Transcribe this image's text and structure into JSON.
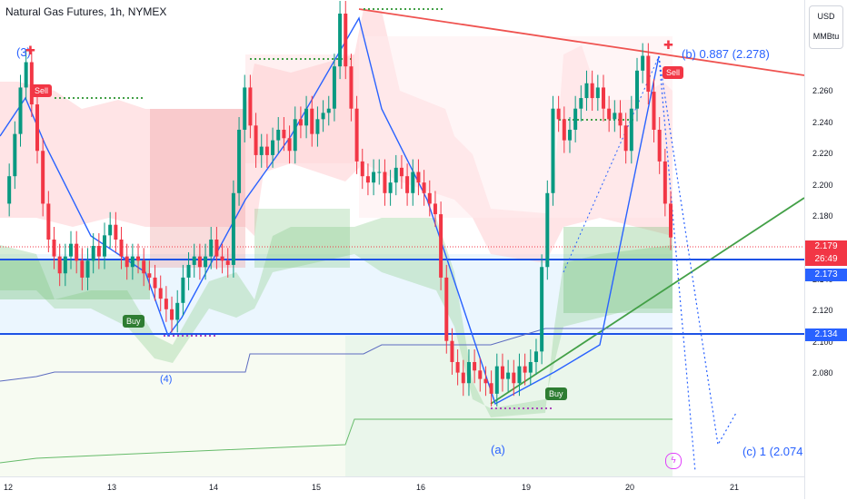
{
  "header": {
    "title": "Natural Gas Futures, 1h, NYMEX"
  },
  "units": {
    "currency": "USD",
    "unit": "MMBtu"
  },
  "colors": {
    "bull": "#089981",
    "bear": "#f23645",
    "wave": "#2962ff",
    "trend_up": "#43a047",
    "trend_down": "#ef5350",
    "tag_dark": "#2962ff",
    "tag_red": "#f23645"
  },
  "labels": {
    "wave_3": "(3)",
    "wave_a": "(a)",
    "wave_b": "(b) 0.887 (2.278)",
    "wave_c": "(c) 1 (2.074",
    "wave_4": "(4)",
    "sell": "Sell",
    "buy": "Buy"
  },
  "price_tags": {
    "last": "2.179",
    "countdown": "26:49",
    "level_1": "2.173",
    "level_2": "2.134"
  },
  "chart_data": {
    "type": "line",
    "title": "Natural Gas Futures, 1h, NYMEX",
    "y_ticks": [
      "2.260",
      "2.240",
      "2.220",
      "2.200",
      "2.180",
      "2.160",
      "2.140",
      "2.120",
      "2.100",
      "2.080"
    ],
    "x_ticks": [
      "12",
      "13",
      "14",
      "15",
      "16",
      "19",
      "20",
      "21"
    ],
    "ylim": [
      2.068,
      2.288
    ],
    "horizontal_levels": [
      2.173,
      2.134
    ],
    "series": [
      {
        "values": [
          2.195,
          2.208,
          2.228,
          2.25,
          2.262,
          2.242,
          2.22,
          2.195,
          2.178,
          2.17,
          2.162,
          2.17,
          2.176,
          2.168,
          2.16,
          2.168,
          2.175,
          2.17,
          2.18,
          2.185,
          2.178,
          2.17,
          2.165,
          2.17,
          2.168,
          2.162,
          2.16,
          2.155,
          2.15,
          2.145,
          2.14,
          2.148,
          2.16,
          2.166,
          2.17,
          2.165,
          2.17,
          2.178,
          2.17,
          2.168,
          2.166,
          2.2,
          2.23,
          2.25,
          2.232,
          2.218,
          2.222,
          2.218,
          2.225,
          2.23,
          2.226,
          2.22,
          2.235,
          2.232,
          2.24,
          2.228,
          2.235,
          2.238,
          2.24,
          2.26,
          2.285,
          2.26,
          2.24,
          2.215,
          2.208,
          2.205,
          2.21,
          2.21,
          2.2,
          2.205,
          2.212,
          2.208,
          2.2,
          2.21,
          2.205,
          2.2,
          2.195,
          2.19,
          2.16,
          2.13,
          2.12,
          2.115,
          2.11,
          2.12,
          2.116,
          2.112,
          2.11,
          2.105,
          2.118,
          2.112,
          2.115,
          2.11,
          2.118,
          2.115,
          2.12,
          2.125,
          2.165,
          2.2,
          2.24,
          2.235,
          2.225,
          2.23,
          2.24,
          2.245,
          2.252,
          2.245,
          2.25,
          2.24,
          2.235,
          2.238,
          2.232,
          2.22,
          2.24,
          2.258,
          2.265,
          2.248,
          2.23,
          2.215,
          2.195,
          2.179
        ]
      }
    ],
    "annotations": [
      "(3)",
      "(a)",
      "(b) 0.887 (2.278)",
      "(c) 1 (2.074",
      "Sell",
      "Buy"
    ]
  }
}
